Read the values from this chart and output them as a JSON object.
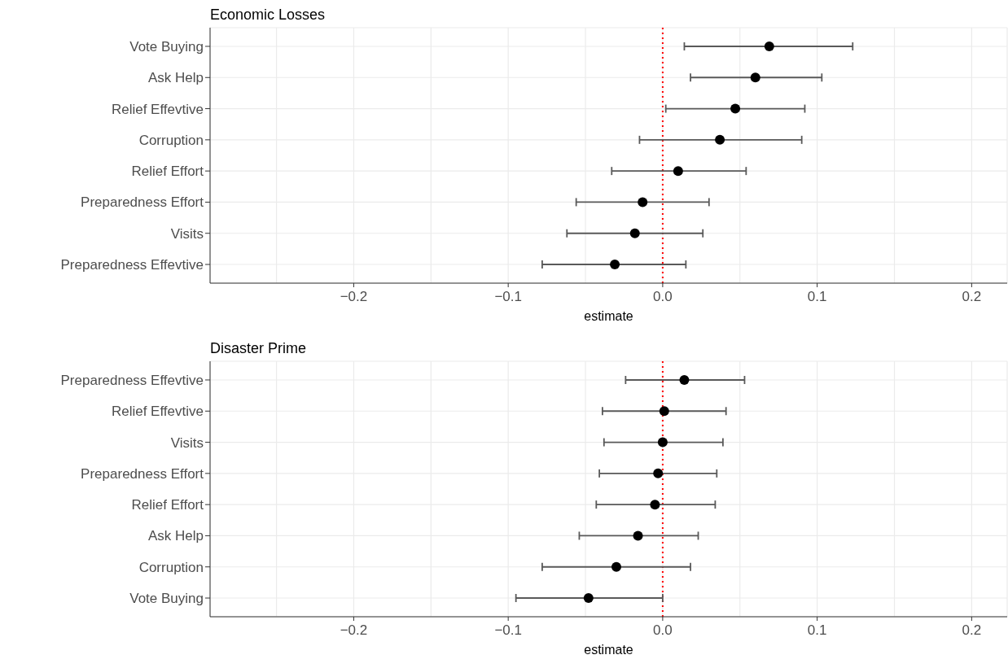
{
  "chart_data": [
    {
      "type": "scatter",
      "title": "Economic Losses",
      "xlabel": "estimate",
      "orientation": "horizontal",
      "categories": [
        "Vote Buying",
        "Ask Help",
        "Relief Effevtive",
        "Corruption",
        "Relief Effort",
        "Preparedness Effort",
        "Visits",
        "Preparedness Effevtive"
      ],
      "series": [
        {
          "color": "#000000",
          "values": [
            0.069,
            0.06,
            0.047,
            0.037,
            0.01,
            -0.013,
            -0.018,
            -0.031
          ],
          "errors": [
            [
              0.014,
              0.123
            ],
            [
              0.018,
              0.103
            ],
            [
              0.002,
              0.092
            ],
            [
              -0.015,
              0.09
            ],
            [
              -0.033,
              0.054
            ],
            [
              -0.056,
              0.03
            ],
            [
              -0.062,
              0.026
            ],
            [
              -0.078,
              0.015
            ]
          ]
        }
      ],
      "xlim": [
        -0.293,
        0.223
      ],
      "xticks": [
        {
          "value": -0.25,
          "label": null
        },
        {
          "value": -0.2,
          "label": "−0.2"
        },
        {
          "value": -0.15,
          "label": null
        },
        {
          "value": -0.1,
          "label": "−0.1"
        },
        {
          "value": -0.05,
          "label": null
        },
        {
          "value": 0.0,
          "label": "0.0"
        },
        {
          "value": 0.05,
          "label": null
        },
        {
          "value": 0.1,
          "label": "0.1"
        },
        {
          "value": 0.15,
          "label": null
        },
        {
          "value": 0.2,
          "label": "0.2"
        }
      ],
      "ref_lines": [
        {
          "axis": "x",
          "value": 0,
          "color": "#ff0000",
          "line_style": "dotted"
        }
      ],
      "grid": true,
      "marker": "circle",
      "legend": false
    },
    {
      "type": "scatter",
      "title": "Disaster Prime",
      "xlabel": "estimate",
      "orientation": "horizontal",
      "categories": [
        "Preparedness Effevtive",
        "Relief Effevtive",
        "Visits",
        "Preparedness Effort",
        "Relief Effort",
        "Ask Help",
        "Corruption",
        "Vote Buying"
      ],
      "series": [
        {
          "color": "#000000",
          "values": [
            0.014,
            0.001,
            0.0,
            -0.003,
            -0.005,
            -0.016,
            -0.03,
            -0.048
          ],
          "errors": [
            [
              -0.024,
              0.053
            ],
            [
              -0.039,
              0.041
            ],
            [
              -0.038,
              0.039
            ],
            [
              -0.041,
              0.035
            ],
            [
              -0.043,
              0.034
            ],
            [
              -0.054,
              0.023
            ],
            [
              -0.078,
              0.018
            ],
            [
              -0.095,
              0.0
            ]
          ]
        }
      ],
      "xlim": [
        -0.293,
        0.223
      ],
      "xticks": [
        {
          "value": -0.25,
          "label": null
        },
        {
          "value": -0.2,
          "label": "−0.2"
        },
        {
          "value": -0.15,
          "label": null
        },
        {
          "value": -0.1,
          "label": "−0.1"
        },
        {
          "value": -0.05,
          "label": null
        },
        {
          "value": 0.0,
          "label": "0.0"
        },
        {
          "value": 0.05,
          "label": null
        },
        {
          "value": 0.1,
          "label": "0.1"
        },
        {
          "value": 0.15,
          "label": null
        },
        {
          "value": 0.2,
          "label": "0.2"
        }
      ],
      "ref_lines": [
        {
          "axis": "x",
          "value": 0,
          "color": "#ff0000",
          "line_style": "dotted"
        }
      ],
      "grid": true,
      "marker": "circle",
      "legend": false
    }
  ]
}
